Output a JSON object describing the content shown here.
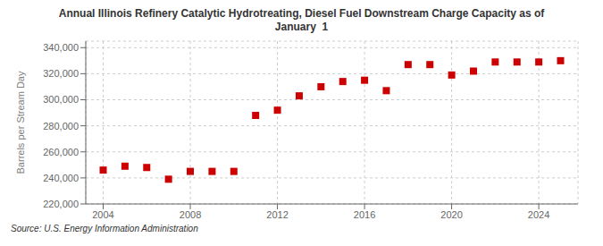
{
  "chart_data": {
    "type": "scatter",
    "title": "Annual Illinois Refinery Catalytic Hydrotreating, Diesel Fuel Downstream Charge Capacity as of\nJanuary  1",
    "ylabel": "Barrels per Stream Day",
    "source": "Source: U.S. Energy Information Administration",
    "x": [
      2004,
      2005,
      2006,
      2007,
      2008,
      2009,
      2010,
      2011,
      2012,
      2013,
      2014,
      2015,
      2016,
      2017,
      2018,
      2019,
      2020,
      2021,
      2022,
      2023,
      2024,
      2025
    ],
    "values": [
      246000,
      249000,
      248000,
      239000,
      245000,
      245000,
      245000,
      288000,
      292000,
      303000,
      310000,
      314000,
      315000,
      307000,
      327000,
      327000,
      319000,
      322000,
      329000,
      329000,
      329000,
      330000
    ],
    "xlim": [
      2003.2,
      2025.8
    ],
    "xticks": [
      2004,
      2008,
      2012,
      2016,
      2020,
      2024
    ],
    "ylim": [
      220000,
      345000
    ],
    "yticks": [
      {
        "value": 220000,
        "label": "220,000"
      },
      {
        "value": 240000,
        "label": "240,000"
      },
      {
        "value": 260000,
        "label": "260,000"
      },
      {
        "value": 280000,
        "label": "280,000"
      },
      {
        "value": 300000,
        "label": "300,000"
      },
      {
        "value": 320000,
        "label": "320,000"
      },
      {
        "value": 340000,
        "label": "340,000"
      }
    ],
    "color": "#cc0000",
    "marker": "square",
    "grid": true
  }
}
